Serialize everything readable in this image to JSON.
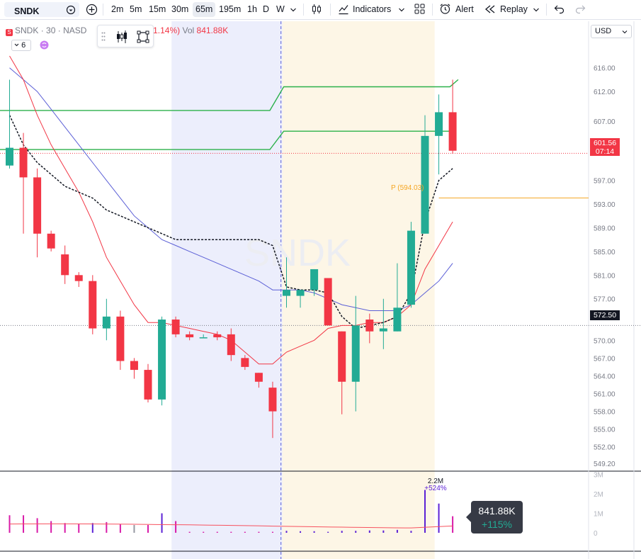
{
  "toolbar": {
    "symbol": "SNDK",
    "intervals": [
      "2m",
      "5m",
      "15m",
      "30m",
      "65m",
      "195m",
      "1h",
      "D",
      "W"
    ],
    "active_interval": "65m",
    "indicators_label": "Indicators",
    "alert_label": "Alert",
    "replay_label": "Replay"
  },
  "legend": {
    "symbol": "SNDK",
    "interval": "30",
    "exchange": "NASD",
    "change": "−1.14%)",
    "vol_label": "Vol",
    "vol_value": "841.88K",
    "interval_select": "6"
  },
  "watermark": "SNDK",
  "currency": "USD",
  "price_tag": {
    "price": "601.56",
    "countdown": "07:14"
  },
  "crosshair_price": "572.50",
  "pivot_label": "P (594.03)",
  "volume_tooltip": {
    "value": "841.88K",
    "change": "+115%"
  },
  "volume_peak_label": {
    "value": "2.2M",
    "change": "+524%"
  },
  "colors": {
    "up": "#22ab94",
    "down": "#f23645",
    "sma_dark": "#131722",
    "ema_red": "#f23645",
    "ema_blue": "#5b5fd6",
    "pivot_green": "#2bb14a",
    "pivot_orange": "#f5a623",
    "session_pre": "#eceefc",
    "session_post": "#fdf6e6",
    "vol_magenta": "#d81ba9",
    "vol_purple": "#5c22d6",
    "vol_gray": "#9598a1"
  },
  "chart_data": {
    "type": "candlestick",
    "price_axis": {
      "ticks": [
        616.0,
        612.0,
        607.0,
        601.56,
        597.0,
        593.0,
        589.0,
        585.0,
        581.0,
        577.0,
        572.5,
        570.0,
        567.0,
        564.0,
        561.0,
        558.0,
        555.0,
        552.0,
        549.2
      ],
      "range": [
        548.5,
        618.0
      ]
    },
    "volume_axis": {
      "ticks": [
        "3M",
        "2M",
        "1M",
        "0"
      ],
      "range": [
        0,
        3.2
      ]
    },
    "candles": [
      {
        "o": 599.5,
        "h": 614.0,
        "l": 599.0,
        "c": 602.5
      },
      {
        "o": 602.5,
        "h": 605.0,
        "l": 588.0,
        "c": 597.5
      },
      {
        "o": 597.5,
        "h": 599.0,
        "l": 584.0,
        "c": 588.0
      },
      {
        "o": 588.0,
        "h": 588.5,
        "l": 585.0,
        "c": 585.5
      },
      {
        "o": 584.5,
        "h": 586.0,
        "l": 579.5,
        "c": 581.0
      },
      {
        "o": 581.0,
        "h": 581.5,
        "l": 579.0,
        "c": 580.0
      },
      {
        "o": 580.0,
        "h": 581.0,
        "l": 571.0,
        "c": 572.0
      },
      {
        "o": 572.0,
        "h": 577.0,
        "l": 570.0,
        "c": 574.0
      },
      {
        "o": 574.0,
        "h": 575.0,
        "l": 565.0,
        "c": 566.5
      },
      {
        "o": 566.5,
        "h": 567.0,
        "l": 563.5,
        "c": 565.0
      },
      {
        "o": 565.0,
        "h": 566.0,
        "l": 559.5,
        "c": 560.0
      },
      {
        "o": 560.0,
        "h": 574.0,
        "l": 559.0,
        "c": 573.5
      },
      {
        "o": 573.5,
        "h": 574.0,
        "l": 570.5,
        "c": 571.0
      },
      {
        "o": 571.0,
        "h": 571.5,
        "l": 570.0,
        "c": 570.5
      },
      {
        "o": 570.5,
        "h": 571.0,
        "l": 570.5,
        "c": 570.5
      },
      {
        "o": 571.0,
        "h": 571.5,
        "l": 570.0,
        "c": 570.5
      },
      {
        "o": 571.0,
        "h": 572.0,
        "l": 566.5,
        "c": 567.5
      },
      {
        "o": 567.0,
        "h": 567.5,
        "l": 565.0,
        "c": 565.5
      },
      {
        "o": 564.5,
        "h": 564.5,
        "l": 562.0,
        "c": 563.0
      },
      {
        "o": 562.0,
        "h": 563.0,
        "l": 553.5,
        "c": 558.0
      },
      {
        "o": 577.5,
        "h": 584.0,
        "l": 575.5,
        "c": 578.5
      },
      {
        "o": 577.5,
        "h": 578.5,
        "l": 575.5,
        "c": 578.5
      },
      {
        "o": 578.5,
        "h": 582.0,
        "l": 577.5,
        "c": 582.0
      },
      {
        "o": 580.5,
        "h": 580.5,
        "l": 572.5,
        "c": 572.5
      },
      {
        "o": 571.5,
        "h": 571.5,
        "l": 557.5,
        "c": 563.0
      },
      {
        "o": 563.0,
        "h": 577.5,
        "l": 558.0,
        "c": 572.5
      },
      {
        "o": 573.5,
        "h": 574.5,
        "l": 569.5,
        "c": 571.5
      },
      {
        "o": 571.5,
        "h": 577.0,
        "l": 568.5,
        "c": 572.0
      },
      {
        "o": 571.5,
        "h": 583.0,
        "l": 571.5,
        "c": 575.5
      },
      {
        "o": 576.0,
        "h": 590.0,
        "l": 575.5,
        "c": 588.5
      },
      {
        "o": 588.0,
        "h": 608.0,
        "l": 588.0,
        "c": 604.5
      },
      {
        "o": 604.5,
        "h": 611.5,
        "l": 598.0,
        "c": 608.5
      },
      {
        "o": 608.5,
        "h": 614.0,
        "l": 601.5,
        "c": 602.0
      }
    ],
    "volume": [
      {
        "v": 0.9,
        "color": "magenta"
      },
      {
        "v": 0.9,
        "color": "magenta"
      },
      {
        "v": 0.75,
        "color": "magenta"
      },
      {
        "v": 0.6,
        "color": "magenta"
      },
      {
        "v": 0.5,
        "color": "magenta"
      },
      {
        "v": 0.45,
        "color": "magenta"
      },
      {
        "v": 0.5,
        "color": "purple"
      },
      {
        "v": 0.55,
        "color": "magenta"
      },
      {
        "v": 0.45,
        "color": "magenta"
      },
      {
        "v": 0.4,
        "color": "gray"
      },
      {
        "v": 0.4,
        "color": "magenta"
      },
      {
        "v": 1.0,
        "color": "purple"
      },
      {
        "v": 0.6,
        "color": "magenta"
      },
      {
        "v": 0.05,
        "color": "magenta"
      },
      {
        "v": 0.05,
        "color": "magenta"
      },
      {
        "v": 0.05,
        "color": "magenta"
      },
      {
        "v": 0.05,
        "color": "magenta"
      },
      {
        "v": 0.05,
        "color": "magenta"
      },
      {
        "v": 0.05,
        "color": "magenta"
      },
      {
        "v": 0.05,
        "color": "magenta"
      },
      {
        "v": 0.1,
        "color": "purple"
      },
      {
        "v": 0.08,
        "color": "purple"
      },
      {
        "v": 0.08,
        "color": "purple"
      },
      {
        "v": 0.05,
        "color": "purple"
      },
      {
        "v": 0.1,
        "color": "purple"
      },
      {
        "v": 0.1,
        "color": "purple"
      },
      {
        "v": 0.12,
        "color": "purple"
      },
      {
        "v": 0.12,
        "color": "purple"
      },
      {
        "v": 0.15,
        "color": "purple"
      },
      {
        "v": 0.1,
        "color": "purple"
      },
      {
        "v": 2.2,
        "color": "purple"
      },
      {
        "v": 1.5,
        "color": "purple"
      },
      {
        "v": 0.85,
        "color": "magenta"
      }
    ],
    "sma_dotted": [
      608,
      603,
      600,
      598,
      596,
      595,
      594,
      592,
      591,
      590,
      589,
      588,
      587,
      587,
      587,
      587,
      587,
      587,
      587,
      586,
      579,
      578.5,
      578.5,
      578,
      574,
      572,
      572.5,
      573,
      574,
      578,
      590,
      597,
      599
    ],
    "ema_red": [
      618,
      614,
      608,
      603,
      599,
      595,
      590,
      584,
      580,
      576,
      573,
      573,
      572.5,
      572,
      571.5,
      571,
      570,
      568,
      566,
      566,
      568,
      569,
      570,
      572,
      572.5,
      572.5,
      573,
      573,
      574,
      576,
      582,
      586,
      590
    ],
    "ema_blue": [
      616,
      614,
      612,
      609,
      606,
      603,
      600,
      597,
      594,
      591,
      589,
      587,
      586,
      585,
      584,
      583,
      582,
      581,
      580,
      578.5,
      578.5,
      578.5,
      578,
      577,
      576,
      575.5,
      575,
      575,
      575,
      576,
      578,
      580,
      583
    ],
    "pivot_green_upper": [
      [
        0,
        608.8
      ],
      [
        18.8,
        608.8
      ],
      [
        19.8,
        612.8
      ],
      [
        31.8,
        612.8
      ],
      [
        32.4,
        614.0
      ]
    ],
    "pivot_green_lower": [
      [
        0,
        602.2
      ],
      [
        18.8,
        602.2
      ],
      [
        19.8,
        605.3
      ],
      [
        32.0,
        605.3
      ]
    ],
    "pivot_orange": {
      "price": 594.03,
      "from": 31.0
    },
    "session_pre": [
      11.7,
      19.7
    ],
    "session_post": [
      19.7,
      30.7
    ],
    "session_divider_x": 19.6,
    "crosshair_price": 572.5
  }
}
